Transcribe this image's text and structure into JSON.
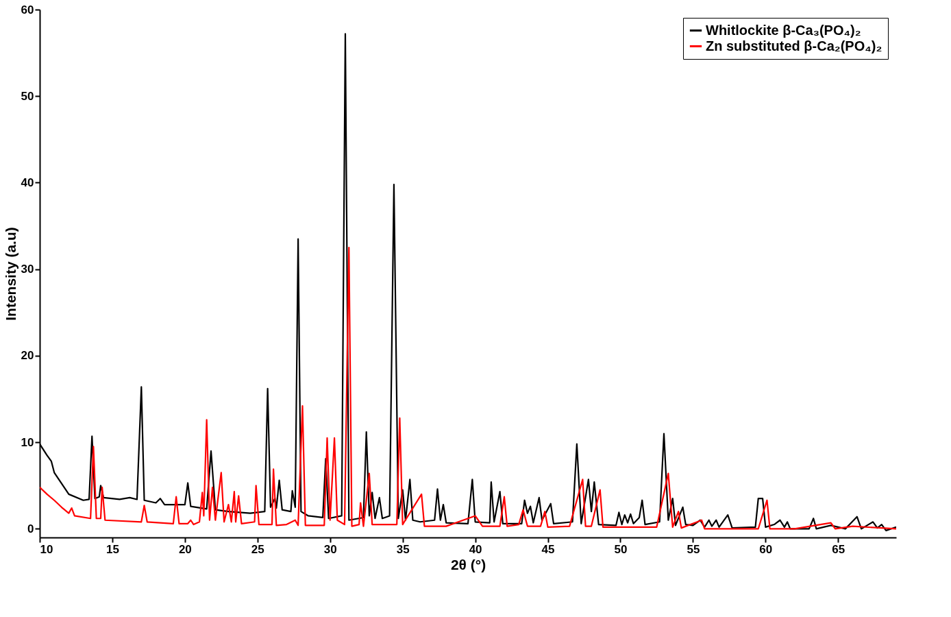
{
  "chart_data": {
    "type": "line",
    "xlabel": "2θ (°)",
    "ylabel": "Intensity (a.u)",
    "xlim": [
      10,
      69
    ],
    "ylim": [
      -1,
      60
    ],
    "xticks": [
      10,
      15,
      20,
      25,
      30,
      35,
      40,
      45,
      50,
      55,
      60,
      65
    ],
    "yticks": [
      0,
      10,
      20,
      30,
      40,
      50,
      60
    ],
    "grid": false,
    "legend": "top right",
    "marker": "none",
    "line_style": "solid",
    "series": [
      {
        "name": "Whitlockite β-Ca₃(PO₄)₂",
        "color": "#000000",
        "x": [
          10.0,
          10.5,
          10.8,
          11.0,
          12.0,
          13.0,
          13.4,
          13.6,
          13.8,
          14.1,
          14.2,
          14.4,
          15.5,
          16.2,
          16.7,
          17.0,
          17.2,
          18.0,
          18.3,
          18.6,
          20.0,
          20.2,
          20.4,
          21.5,
          21.8,
          22.1,
          23.0,
          24.5,
          25.5,
          25.7,
          25.9,
          26.2,
          26.3,
          26.5,
          26.7,
          27.3,
          27.4,
          27.6,
          27.8,
          28.0,
          28.5,
          29.5,
          29.7,
          29.9,
          30.8,
          31.05,
          31.3,
          32.3,
          32.5,
          32.7,
          32.9,
          33.1,
          33.4,
          33.6,
          34.1,
          34.4,
          34.7,
          35.0,
          35.2,
          35.5,
          35.7,
          36.2,
          37.2,
          37.4,
          37.6,
          37.8,
          38.0,
          39.5,
          39.8,
          40.0,
          41.0,
          41.1,
          41.3,
          41.7,
          41.9,
          43.2,
          43.4,
          43.6,
          43.8,
          44.0,
          44.4,
          44.6,
          45.2,
          45.4,
          46.7,
          47.0,
          47.3,
          47.8,
          48.0,
          48.2,
          48.5,
          49.7,
          49.9,
          50.1,
          50.3,
          50.5,
          50.7,
          50.9,
          51.3,
          51.5,
          51.7,
          52.7,
          53.0,
          53.3,
          53.6,
          53.8,
          54.3,
          54.5,
          55.0,
          55.5,
          55.8,
          56.1,
          56.3,
          56.6,
          56.8,
          57.4,
          57.7,
          59.3,
          59.5,
          59.8,
          60.0,
          60.6,
          61.0,
          61.3,
          61.5,
          61.7,
          63.0,
          63.3,
          63.5,
          64.5,
          65.5,
          66.3,
          66.6,
          67.4,
          67.7,
          68.0,
          68.3,
          69.0
        ],
        "values": [
          9.8,
          8.5,
          7.8,
          6.5,
          4.0,
          3.3,
          3.4,
          10.7,
          3.5,
          3.7,
          5.0,
          3.6,
          3.4,
          3.6,
          3.4,
          16.4,
          3.3,
          3.0,
          3.5,
          2.8,
          2.8,
          5.3,
          2.6,
          2.3,
          9.0,
          2.2,
          2.0,
          1.8,
          2.0,
          16.2,
          2.5,
          3.5,
          2.4,
          5.6,
          2.2,
          2.0,
          4.4,
          2.5,
          33.5,
          2.0,
          1.5,
          1.3,
          8.1,
          1.2,
          1.5,
          57.2,
          1.0,
          1.3,
          11.2,
          1.5,
          4.2,
          1.2,
          3.6,
          1.2,
          1.5,
          39.8,
          1.2,
          4.5,
          1.0,
          5.7,
          1.0,
          0.8,
          1.0,
          4.6,
          1.0,
          2.8,
          0.7,
          0.6,
          5.7,
          0.8,
          0.7,
          5.4,
          0.8,
          4.3,
          0.6,
          0.6,
          3.3,
          1.8,
          2.6,
          0.7,
          3.6,
          1.0,
          2.9,
          0.6,
          0.8,
          9.8,
          0.6,
          5.7,
          2.0,
          5.4,
          0.5,
          0.4,
          1.9,
          0.5,
          1.6,
          0.7,
          1.7,
          0.6,
          1.3,
          3.3,
          0.5,
          0.8,
          11.0,
          1.0,
          3.5,
          0.4,
          2.5,
          0.5,
          0.4,
          1.0,
          0.2,
          1.0,
          0.3,
          1.0,
          0.2,
          1.6,
          0.1,
          0.2,
          3.5,
          3.5,
          0.2,
          0.5,
          1.0,
          0.2,
          0.8,
          0.0,
          0.0,
          1.2,
          0.0,
          0.4,
          0.0,
          1.4,
          0.0,
          0.8,
          0.1,
          0.5,
          -0.2,
          0.2
        ]
      },
      {
        "name": "Zn substituted β-Ca₂(PO₄)₂",
        "color": "#ff0000",
        "x": [
          10.0,
          10.5,
          11.0,
          11.5,
          12.0,
          12.2,
          12.4,
          13.5,
          13.7,
          13.9,
          14.2,
          14.3,
          14.5,
          17.0,
          17.2,
          17.4,
          19.2,
          19.4,
          19.6,
          20.2,
          20.4,
          20.6,
          21.0,
          21.2,
          21.3,
          21.5,
          21.7,
          21.9,
          22.1,
          22.5,
          22.7,
          23.0,
          23.2,
          23.4,
          23.5,
          23.7,
          23.9,
          24.8,
          24.9,
          25.1,
          26.0,
          26.1,
          26.3,
          27.0,
          27.6,
          27.8,
          28.1,
          28.3,
          29.6,
          29.8,
          30.0,
          30.3,
          30.5,
          31.0,
          31.3,
          31.5,
          32.0,
          32.1,
          32.3,
          32.7,
          32.9,
          34.6,
          34.8,
          35.0,
          36.3,
          36.5,
          38.0,
          40.0,
          40.5,
          41.7,
          42.0,
          42.2,
          43.0,
          43.3,
          43.6,
          44.5,
          44.8,
          45.0,
          46.5,
          47.4,
          47.6,
          48.0,
          48.6,
          48.8,
          52.5,
          53.3,
          53.6,
          54.0,
          54.2,
          55.6,
          55.8,
          58.0,
          59.5,
          60.1,
          60.3,
          62.0,
          64.5,
          64.8,
          66.0,
          69.0
        ],
        "values": [
          4.8,
          4.0,
          3.3,
          2.5,
          1.8,
          2.4,
          1.5,
          1.2,
          9.5,
          1.2,
          1.2,
          4.8,
          1.0,
          0.8,
          2.7,
          0.8,
          0.6,
          3.7,
          0.6,
          0.6,
          1.0,
          0.5,
          0.8,
          4.2,
          1.5,
          12.6,
          1.0,
          4.8,
          1.0,
          6.5,
          0.8,
          2.8,
          0.8,
          4.3,
          0.8,
          3.8,
          0.6,
          0.8,
          5.0,
          0.5,
          0.5,
          6.9,
          0.4,
          0.5,
          1.0,
          0.4,
          14.2,
          0.4,
          0.4,
          10.5,
          1.0,
          10.5,
          1.0,
          0.5,
          32.5,
          0.3,
          0.5,
          3.0,
          0.3,
          6.4,
          0.5,
          0.5,
          12.8,
          0.5,
          4.0,
          0.3,
          0.3,
          1.5,
          0.3,
          0.3,
          3.7,
          0.3,
          0.5,
          2.2,
          0.3,
          0.3,
          2.0,
          0.2,
          0.3,
          5.7,
          0.3,
          0.3,
          4.5,
          0.2,
          0.2,
          6.4,
          0.2,
          2.0,
          0.1,
          1.0,
          0.0,
          0.0,
          0.0,
          3.3,
          0.0,
          0.0,
          0.7,
          0.0,
          0.3,
          0.0
        ]
      }
    ]
  }
}
